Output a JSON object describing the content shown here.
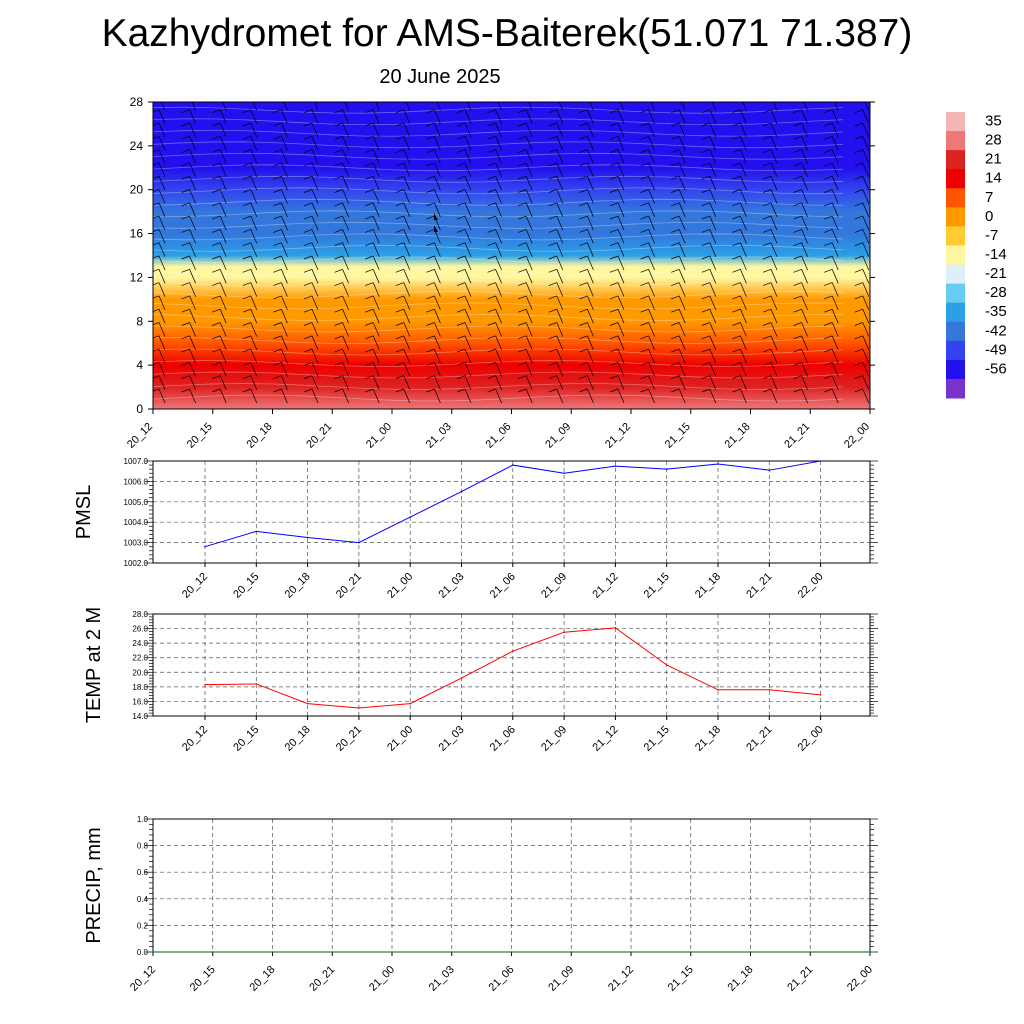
{
  "title": "Kazhydromet for AMS-Baiterek(51.071 71.387)",
  "subtitle": "20 June 2025",
  "colorbar": {
    "labels": [
      "35",
      "28",
      "21",
      "14",
      "7",
      "0",
      "-7",
      "-14",
      "-21",
      "-28",
      "-35",
      "-42",
      "-49",
      "-56"
    ],
    "colors": [
      "#f2b6b6",
      "#ee7777",
      "#dd2222",
      "#ee0000",
      "#ff5500",
      "#ff9900",
      "#ffcc33",
      "#fff7a0",
      "#dfeff7",
      "#66ccf2",
      "#2aa0e6",
      "#3377dd",
      "#3344ee",
      "#2211ee",
      "#7733cc"
    ]
  },
  "chart_data": [
    {
      "type": "heatmap",
      "name": "temperature-profile",
      "ylim": [
        0,
        28
      ],
      "yticks": [
        "0",
        "4",
        "8",
        "12",
        "16",
        "20",
        "24",
        "28"
      ],
      "xticks": [
        "20_12",
        "20_15",
        "20_18",
        "20_21",
        "21_00",
        "21_03",
        "21_06",
        "21_09",
        "21_12",
        "21_15",
        "21_18",
        "21_21",
        "22_00"
      ],
      "levels": [
        0,
        2,
        4,
        6,
        8,
        10,
        12,
        13,
        14,
        16,
        18,
        20,
        22,
        24,
        26,
        28
      ],
      "profile": [
        28,
        24,
        18,
        12,
        6,
        0,
        -8,
        -14,
        -30,
        -38,
        -42,
        -46,
        -50,
        -54,
        -56,
        -52
      ],
      "note_colors": "surface warm (red) to upper cold (blue)"
    },
    {
      "type": "line",
      "name": "PMSL",
      "ylabel": "PMSL",
      "ylim": [
        1002.0,
        1007.0
      ],
      "yticks": [
        "1002.0",
        "1003.0",
        "1004.0",
        "1005.0",
        "1006.0",
        "1007.0"
      ],
      "categories": [
        "20_12",
        "20_15",
        "20_18",
        "20_21",
        "21_00",
        "21_03",
        "21_06",
        "21_09",
        "21_12",
        "21_15",
        "21_18",
        "21_21",
        "22_00"
      ],
      "values": [
        1002.8,
        1003.55,
        1003.25,
        1003.0,
        1004.25,
        1005.5,
        1006.8,
        1006.4,
        1006.75,
        1006.6,
        1006.85,
        1006.55,
        1007.0
      ],
      "color": "#0000ff"
    },
    {
      "type": "line",
      "name": "TEMP at 2 M",
      "ylabel": "TEMP at 2 M",
      "ylim": [
        14.0,
        28.0
      ],
      "yticks": [
        "14.0",
        "16.0",
        "18.0",
        "20.0",
        "22.0",
        "24.0",
        "26.0",
        "28.0"
      ],
      "categories": [
        "20_12",
        "20_15",
        "20_18",
        "20_21",
        "21_00",
        "21_03",
        "21_06",
        "21_09",
        "21_12",
        "21_15",
        "21_18",
        "21_21",
        "22_00"
      ],
      "values": [
        18.3,
        18.4,
        15.7,
        15.1,
        15.7,
        19.2,
        22.9,
        25.5,
        26.1,
        21.0,
        17.6,
        17.6,
        16.9
      ],
      "color": "#ff0000"
    },
    {
      "type": "line",
      "name": "PRECIP, mm",
      "ylabel": "PRECIP, mm",
      "ylim": [
        0.0,
        1.0
      ],
      "yticks": [
        "0.0",
        "0.2",
        "0.4",
        "0.6",
        "0.8",
        "1.0"
      ],
      "categories": [
        "20_12",
        "20_15",
        "20_18",
        "20_21",
        "21_00",
        "21_03",
        "21_06",
        "21_09",
        "21_12",
        "21_15",
        "21_18",
        "21_21",
        "22_00"
      ],
      "values": [
        0,
        0,
        0,
        0,
        0,
        0,
        0,
        0,
        0,
        0,
        0,
        0,
        0
      ],
      "color": "#006600"
    }
  ]
}
